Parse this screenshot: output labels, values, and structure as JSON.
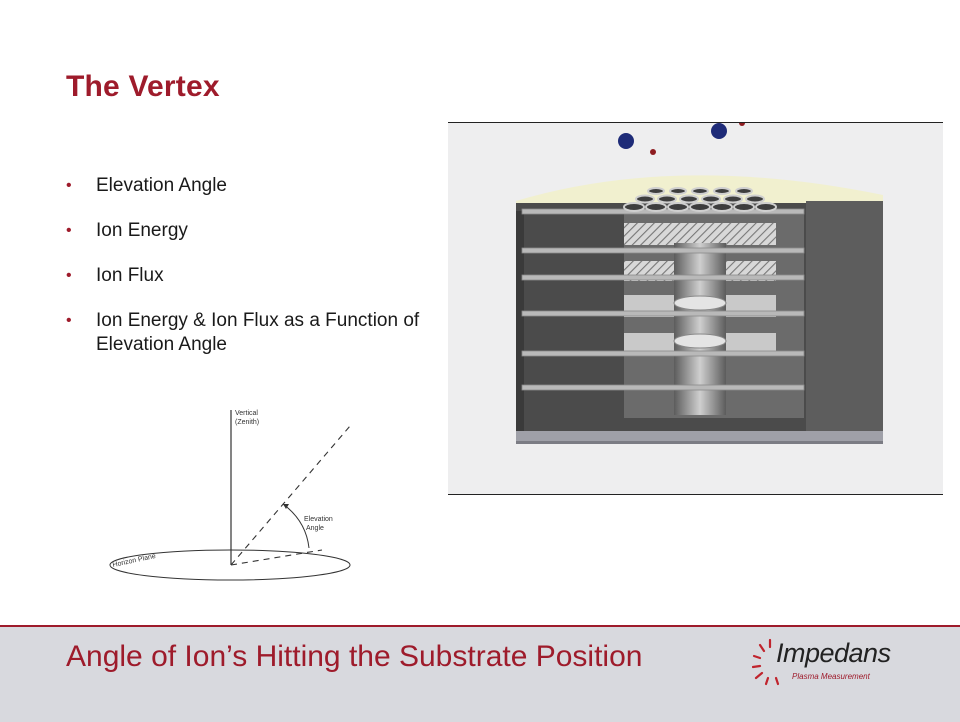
{
  "slide": {
    "title": "The Vertex",
    "bullets": [
      "Elevation Angle",
      "Ion Energy",
      "Ion Flux",
      "Ion Energy & Ion Flux as a Function of Elevation Angle"
    ]
  },
  "diagram": {
    "vertical_label_1": "Vertical",
    "vertical_label_2": "(Zenith)",
    "elevation_label_1": "Elevation",
    "elevation_label_2": "Angle",
    "horizon_label": "Horizon Plane"
  },
  "footer": {
    "title": "Angle of Ion’s Hitting the Substrate Position",
    "logo_name": "Impedans",
    "logo_tagline": "Plasma Measurement"
  },
  "colors": {
    "accent": "#9e1b2b",
    "footer_bg": "#d8d9de"
  }
}
